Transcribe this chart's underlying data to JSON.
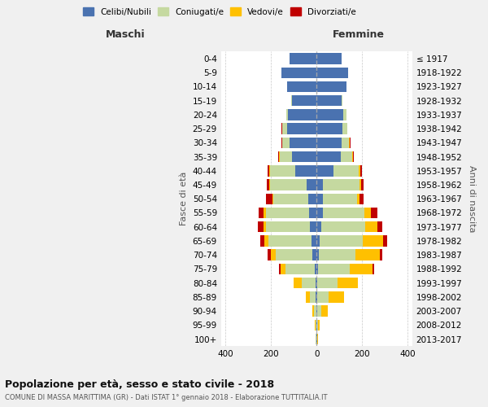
{
  "age_groups": [
    "0-4",
    "5-9",
    "10-14",
    "15-19",
    "20-24",
    "25-29",
    "30-34",
    "35-39",
    "40-44",
    "45-49",
    "50-54",
    "55-59",
    "60-64",
    "65-69",
    "70-74",
    "75-79",
    "80-84",
    "85-89",
    "90-94",
    "95-99",
    "100+"
  ],
  "birth_years": [
    "2013-2017",
    "2008-2012",
    "2003-2007",
    "1998-2002",
    "1993-1997",
    "1988-1992",
    "1983-1987",
    "1978-1982",
    "1973-1977",
    "1968-1972",
    "1963-1967",
    "1958-1962",
    "1953-1957",
    "1948-1952",
    "1943-1947",
    "1938-1942",
    "1933-1937",
    "1928-1932",
    "1923-1927",
    "1918-1922",
    "≤ 1917"
  ],
  "male": {
    "celibi": [
      120,
      155,
      130,
      110,
      125,
      130,
      120,
      110,
      95,
      45,
      38,
      32,
      28,
      22,
      18,
      8,
      5,
      4,
      2,
      2,
      2
    ],
    "coniugati": [
      0,
      0,
      0,
      2,
      8,
      22,
      32,
      52,
      110,
      160,
      152,
      192,
      195,
      190,
      162,
      130,
      60,
      25,
      10,
      3,
      1
    ],
    "vedovi": [
      0,
      0,
      0,
      0,
      0,
      0,
      0,
      2,
      2,
      4,
      5,
      8,
      12,
      18,
      20,
      20,
      35,
      20,
      8,
      2,
      0
    ],
    "divorziati": [
      0,
      0,
      0,
      0,
      2,
      2,
      4,
      5,
      8,
      10,
      28,
      22,
      22,
      18,
      14,
      8,
      2,
      0,
      0,
      0,
      0
    ]
  },
  "female": {
    "nubili": [
      110,
      140,
      130,
      110,
      118,
      112,
      110,
      105,
      75,
      28,
      28,
      28,
      22,
      12,
      8,
      5,
      4,
      4,
      2,
      2,
      2
    ],
    "coniugate": [
      0,
      0,
      0,
      2,
      12,
      22,
      32,
      52,
      110,
      160,
      150,
      182,
      190,
      192,
      162,
      140,
      88,
      48,
      18,
      5,
      1
    ],
    "vedove": [
      0,
      0,
      0,
      0,
      0,
      0,
      2,
      4,
      6,
      8,
      12,
      28,
      55,
      88,
      108,
      100,
      88,
      68,
      30,
      8,
      2
    ],
    "divorziate": [
      0,
      0,
      0,
      0,
      2,
      2,
      4,
      4,
      10,
      12,
      18,
      28,
      22,
      18,
      12,
      8,
      2,
      0,
      0,
      0,
      0
    ]
  },
  "colors": {
    "celibi": "#4a72b0",
    "coniugati": "#c5d9a0",
    "vedovi": "#ffc000",
    "divorziati": "#c00000"
  },
  "xlim": 420,
  "title": "Popolazione per età, sesso e stato civile - 2018",
  "subtitle": "COMUNE DI MASSA MARITTIMA (GR) - Dati ISTAT 1° gennaio 2018 - Elaborazione TUTTITALIA.IT",
  "ylabel_left": "Fasce di età",
  "ylabel_right": "Anni di nascita",
  "xlabel_left": "Maschi",
  "xlabel_right": "Femmine",
  "bg_color": "#f0f0f0",
  "plot_bg_color": "#ffffff"
}
